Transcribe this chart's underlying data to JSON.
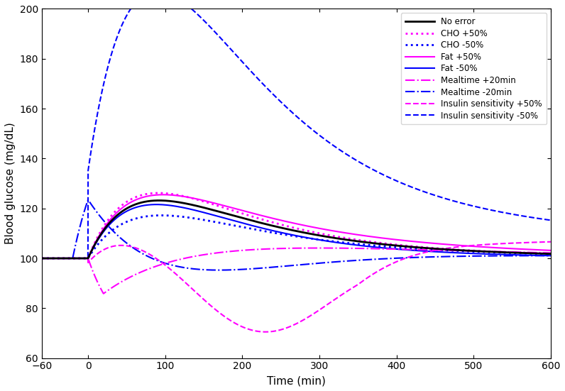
{
  "xlabel": "Time (min)",
  "ylabel": "Blood glucose (mg/dL)",
  "xlim": [
    -60,
    600
  ],
  "ylim": [
    60,
    200
  ],
  "xticks": [
    -60,
    0,
    100,
    200,
    300,
    400,
    500,
    600
  ],
  "yticks": [
    60,
    80,
    100,
    120,
    140,
    160,
    180,
    200
  ],
  "legend_entries": [
    "No error",
    "CHO +50%",
    "CHO -50%",
    "Fat +50%",
    "Fat -50%",
    "Mealtime +20min",
    "Mealtime -20min",
    "Insulin sensitivity +50%",
    "Insulin sensitivity -50%"
  ],
  "magenta": "#ff00ff",
  "blue": "#0000ff",
  "black": "#000000"
}
